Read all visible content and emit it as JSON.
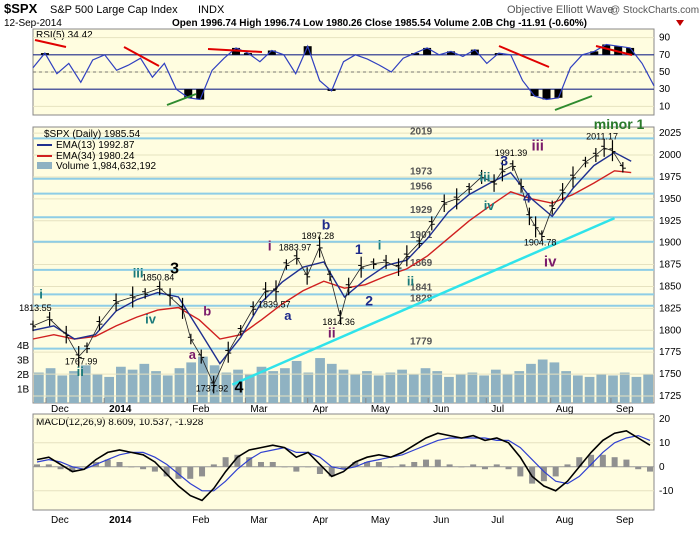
{
  "header": {
    "symbol": "$SPX",
    "name": "S&P 500 Large Cap Index",
    "exchange": "INDX",
    "date": "12-Sep-2014",
    "quote": "Open 1996.74  High 1996.74  Low 1980.26  Close 1985.54  Volume 2.0B  Chg -11.91 (-0.60%)",
    "watermark": "Objective Elliott Wave",
    "credit": "@ StockCharts.com"
  },
  "colors": {
    "panel_bg": "#fffde0",
    "price_bar": "#000000",
    "ema13": "#1f2f8f",
    "ema34": "#d02020",
    "volume": "#8fb2c2",
    "fib_line": "#8ecde6",
    "trendline": "#2fe3ea",
    "rsi_fill": "#000000",
    "rsi_divergence_red": "#e00000",
    "rsi_divergence_green": "#2e8b2e",
    "macd_line": "#000000",
    "macd_signal": "#3040d0",
    "macd_hist": "#909090",
    "label_navy": "#1e2a8a",
    "label_purple": "#7a1a6a",
    "label_teal": "#1a7a7a",
    "label_green": "#2a7a2a"
  },
  "rsi": {
    "label": "RSI(5) 34.42",
    "value": 34.42,
    "tick_labels": [
      "90",
      "70",
      "50",
      "30",
      "10"
    ],
    "ticks": [
      90,
      70,
      50,
      30,
      10
    ],
    "ylim": [
      0,
      100
    ],
    "overbought": 70,
    "oversold": 30
  },
  "legend": {
    "title": "$SPX (Daily) 1985.54",
    "ema13": "EMA(13) 1992.87",
    "ema34": "EMA(34) 1980.24",
    "volume": "Volume 1,984,632,192"
  },
  "price_axis": {
    "ticks": [
      1725,
      1750,
      1775,
      1800,
      1825,
      1850,
      1875,
      1900,
      1925,
      1950,
      1975,
      2000,
      2025
    ],
    "ylim": [
      1717,
      2032
    ]
  },
  "volume_axis": {
    "labels": [
      "4B",
      "3B",
      "2B",
      "1B"
    ],
    "ticks": [
      4,
      3,
      2,
      1
    ],
    "unit": "B"
  },
  "fib_levels": [
    {
      "value": 2019,
      "label": "2019"
    },
    {
      "value": 1973,
      "label": "1973"
    },
    {
      "value": 1956,
      "label": "1956"
    },
    {
      "value": 1929,
      "label": "1929"
    },
    {
      "value": 1901,
      "label": "1901"
    },
    {
      "value": 1869,
      "label": "1869"
    },
    {
      "value": 1841,
      "label": "1841"
    },
    {
      "value": 1828,
      "label": "1828"
    },
    {
      "value": 1779,
      "label": "1779"
    }
  ],
  "price_annotations": [
    {
      "text": "1813.55",
      "x": 0.1,
      "y": 1822
    },
    {
      "text": "1767.99",
      "x": 1.2,
      "y": 1761
    },
    {
      "text": "1850.84",
      "x": 3.05,
      "y": 1857
    },
    {
      "text": "1737.92",
      "x": 4.35,
      "y": 1730
    },
    {
      "text": "1839.57",
      "x": 5.85,
      "y": 1826
    },
    {
      "text": "1883.97",
      "x": 6.35,
      "y": 1891
    },
    {
      "text": "1897.28",
      "x": 6.9,
      "y": 1904
    },
    {
      "text": "1814.36",
      "x": 7.4,
      "y": 1806
    },
    {
      "text": "1991.39",
      "x": 11.55,
      "y": 1999
    },
    {
      "text": "1904.78",
      "x": 12.25,
      "y": 1897
    },
    {
      "text": "2011.17",
      "x": 13.75,
      "y": 2018
    }
  ],
  "wave_labels": [
    {
      "text": "i",
      "x": 0.15,
      "y": 1836,
      "color": "teal",
      "size": 13
    },
    {
      "text": "ii",
      "x": 1.05,
      "y": 1748,
      "color": "teal",
      "size": 13
    },
    {
      "text": "iii",
      "x": 2.4,
      "y": 1860,
      "color": "teal",
      "size": 13
    },
    {
      "text": "3",
      "x": 3.3,
      "y": 1865,
      "color": "black",
      "size": 16
    },
    {
      "text": "iv",
      "x": 2.7,
      "y": 1808,
      "color": "teal",
      "size": 13
    },
    {
      "text": "a",
      "x": 3.75,
      "y": 1767,
      "color": "purple",
      "size": 13
    },
    {
      "text": "b",
      "x": 4.1,
      "y": 1817,
      "color": "purple",
      "size": 13
    },
    {
      "text": "4",
      "x": 4.85,
      "y": 1729,
      "color": "black",
      "size": 16
    },
    {
      "text": "i",
      "x": 5.65,
      "y": 1891,
      "color": "purple",
      "size": 14
    },
    {
      "text": "a",
      "x": 6.05,
      "y": 1812,
      "color": "navy",
      "size": 13
    },
    {
      "text": "b",
      "x": 6.95,
      "y": 1915,
      "color": "navy",
      "size": 14
    },
    {
      "text": "ii",
      "x": 7.1,
      "y": 1792,
      "color": "purple",
      "size": 14
    },
    {
      "text": "1",
      "x": 7.75,
      "y": 1887,
      "color": "navy",
      "size": 14
    },
    {
      "text": "i",
      "x": 8.3,
      "y": 1892,
      "color": "teal",
      "size": 13
    },
    {
      "text": "2",
      "x": 8.0,
      "y": 1828,
      "color": "navy",
      "size": 14
    },
    {
      "text": "ii",
      "x": 9.0,
      "y": 1851,
      "color": "teal",
      "size": 13
    },
    {
      "text": "iii",
      "x": 10.75,
      "y": 1970,
      "color": "teal",
      "size": 13
    },
    {
      "text": "3",
      "x": 11.25,
      "y": 1988,
      "color": "navy",
      "size": 14
    },
    {
      "text": "iv",
      "x": 10.85,
      "y": 1937,
      "color": "teal",
      "size": 13
    },
    {
      "text": "4",
      "x": 11.8,
      "y": 1946,
      "color": "navy",
      "size": 14
    },
    {
      "text": "iii",
      "x": 12.0,
      "y": 2005,
      "color": "purple",
      "size": 15
    },
    {
      "text": "iv",
      "x": 12.3,
      "y": 1873,
      "color": "purple",
      "size": 15
    },
    {
      "text": "minor 1",
      "x": 13.5,
      "y": 2030,
      "color": "green",
      "size": 14
    }
  ],
  "macd": {
    "label": "MACD(12,26,9) 8.609, 10.537, -1.928",
    "macd": 8.609,
    "signal": 10.537,
    "histogram": -1.928,
    "ticks": [
      20,
      10,
      0,
      -10
    ],
    "tick_labels": [
      "20",
      "10",
      "0",
      "-10"
    ],
    "ylim": [
      -18,
      22
    ]
  },
  "x_axis": {
    "labels": [
      {
        "text": "Dec",
        "x": 0.65
      },
      {
        "text": "2014",
        "x": 2.05
      },
      {
        "text": "Feb",
        "x": 4.05
      },
      {
        "text": "Mar",
        "x": 5.45
      },
      {
        "text": "Apr",
        "x": 6.95
      },
      {
        "text": "May",
        "x": 8.35
      },
      {
        "text": "Jun",
        "x": 9.85
      },
      {
        "text": "Jul",
        "x": 11.25
      },
      {
        "text": "Aug",
        "x": 12.8
      },
      {
        "text": "Sep",
        "x": 14.25
      }
    ],
    "xlim": [
      0,
      14.95
    ],
    "bold": [
      "2014"
    ]
  },
  "chart_data": {
    "type": "line",
    "title": "$SPX S&P 500 Large Cap Index INDX",
    "series": [
      {
        "name": "$SPX (Daily) 1985.54",
        "x": [
          0,
          0.4,
          0.8,
          1.1,
          1.3,
          1.6,
          2.0,
          2.4,
          2.7,
          3.05,
          3.3,
          3.6,
          3.8,
          4.05,
          4.35,
          4.7,
          5.0,
          5.3,
          5.6,
          5.85,
          6.1,
          6.35,
          6.6,
          6.9,
          7.15,
          7.4,
          7.6,
          7.9,
          8.2,
          8.5,
          8.8,
          9.0,
          9.3,
          9.6,
          9.9,
          10.2,
          10.5,
          10.8,
          11.1,
          11.3,
          11.55,
          11.75,
          11.95,
          12.1,
          12.25,
          12.5,
          12.75,
          13.0,
          13.3,
          13.55,
          13.75,
          13.95,
          14.2
        ],
        "y": [
          1805,
          1813,
          1795,
          1770,
          1780,
          1808,
          1832,
          1838,
          1842,
          1848,
          1838,
          1825,
          1790,
          1770,
          1738,
          1775,
          1800,
          1825,
          1845,
          1845,
          1875,
          1883,
          1862,
          1895,
          1862,
          1815,
          1850,
          1872,
          1876,
          1878,
          1872,
          1885,
          1900,
          1922,
          1945,
          1950,
          1962,
          1975,
          1968,
          1982,
          1988,
          1965,
          1930,
          1918,
          1908,
          1940,
          1958,
          1975,
          1992,
          2000,
          2008,
          2005,
          1986
        ]
      },
      {
        "name": "EMA(13) 1992.87",
        "x": [
          0,
          0.5,
          1.0,
          1.5,
          2.0,
          2.5,
          3.0,
          3.5,
          4.0,
          4.5,
          5.0,
          5.5,
          6.0,
          6.5,
          7.0,
          7.5,
          8.0,
          8.5,
          9.0,
          9.5,
          10.0,
          10.5,
          11.0,
          11.5,
          12.0,
          12.5,
          13.0,
          13.5,
          14.0,
          14.4
        ],
        "y": [
          1800,
          1805,
          1790,
          1795,
          1822,
          1835,
          1843,
          1838,
          1800,
          1762,
          1792,
          1832,
          1855,
          1872,
          1878,
          1838,
          1858,
          1874,
          1880,
          1905,
          1935,
          1955,
          1968,
          1980,
          1950,
          1930,
          1962,
          1988,
          2003,
          1993
        ]
      },
      {
        "name": "EMA(34) 1980.24",
        "x": [
          0,
          0.5,
          1.0,
          1.5,
          2.0,
          2.5,
          3.0,
          3.5,
          4.0,
          4.5,
          5.0,
          5.5,
          6.0,
          6.5,
          7.0,
          7.5,
          8.0,
          8.5,
          9.0,
          9.5,
          10.0,
          10.5,
          11.0,
          11.5,
          12.0,
          12.5,
          13.0,
          13.5,
          14.0,
          14.4
        ],
        "y": [
          1790,
          1795,
          1790,
          1793,
          1805,
          1815,
          1823,
          1826,
          1812,
          1790,
          1795,
          1812,
          1830,
          1845,
          1856,
          1848,
          1852,
          1862,
          1870,
          1885,
          1905,
          1925,
          1942,
          1958,
          1950,
          1945,
          1955,
          1968,
          1982,
          1980
        ]
      }
    ],
    "trendline": {
      "x": [
        4.8,
        14.0
      ],
      "y": [
        1738,
        1928
      ]
    },
    "volume_bars": [
      2.1,
      2.4,
      1.9,
      2.2,
      2.6,
      2.0,
      1.8,
      2.5,
      2.3,
      2.7,
      2.2,
      1.9,
      2.4,
      2.8,
      3.2,
      2.6,
      2.1,
      2.3,
      2.0,
      2.5,
      2.2,
      2.4,
      2.9,
      2.1,
      3.1,
      2.7,
      2.3,
      2.0,
      2.2,
      1.9,
      2.1,
      2.3,
      2.0,
      2.4,
      2.2,
      1.8,
      2.0,
      2.1,
      1.9,
      2.3,
      2.0,
      2.2,
      2.7,
      3.0,
      2.8,
      2.2,
      1.9,
      1.8,
      2.0,
      1.9,
      2.1,
      1.8,
      2.0
    ],
    "rsi_values": [
      55,
      72,
      48,
      60,
      38,
      64,
      70,
      52,
      58,
      66,
      44,
      60,
      30,
      20,
      18,
      52,
      66,
      78,
      72,
      62,
      75,
      70,
      48,
      80,
      40,
      28,
      62,
      70,
      65,
      58,
      50,
      66,
      72,
      78,
      70,
      74,
      68,
      76,
      60,
      72,
      70,
      40,
      22,
      18,
      20,
      55,
      70,
      74,
      82,
      80,
      78,
      60,
      34
    ],
    "macd_values": [
      3,
      4,
      1,
      -2,
      -1,
      3,
      6,
      7,
      6,
      5,
      2,
      -3,
      -8,
      -12,
      -14,
      -9,
      -2,
      4,
      7,
      8,
      9,
      8,
      4,
      6,
      1,
      -4,
      -2,
      2,
      4,
      5,
      4,
      6,
      9,
      12,
      14,
      13,
      12,
      13,
      11,
      12,
      10,
      4,
      -4,
      -8,
      -10,
      -6,
      0,
      6,
      11,
      14,
      15,
      12,
      9
    ],
    "signal_values": [
      2,
      3,
      2,
      0,
      -1,
      1,
      3,
      5,
      6,
      6,
      4,
      1,
      -3,
      -7,
      -10,
      -10,
      -6,
      -1,
      3,
      6,
      7,
      8,
      6,
      6,
      4,
      0,
      -1,
      0,
      2,
      3,
      4,
      5,
      7,
      9,
      11,
      12,
      12,
      12,
      12,
      11,
      11,
      8,
      3,
      -2,
      -6,
      -7,
      -4,
      1,
      6,
      10,
      12,
      13,
      11
    ],
    "xlabel": "",
    "ylabel": "",
    "ylim": [
      1717,
      2032
    ],
    "xlim": [
      0,
      14.95
    ],
    "grid": true
  }
}
